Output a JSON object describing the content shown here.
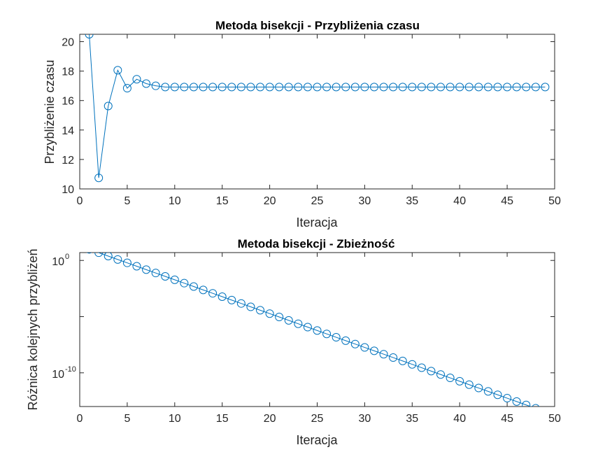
{
  "chart_data": [
    {
      "type": "line",
      "title": "Metoda bisekcji - Przybliżenia czasu",
      "xlabel": "Iteracja",
      "ylabel": "Przybliżenie czasu",
      "xlim": [
        0,
        50
      ],
      "ylim": [
        10,
        20.5
      ],
      "xticks": [
        0,
        5,
        10,
        15,
        20,
        25,
        30,
        35,
        40,
        45,
        50
      ],
      "yticks": [
        10,
        12,
        14,
        16,
        18,
        20
      ],
      "yscale": "linear",
      "grid": false,
      "color": "#0072BD",
      "marker": "circle",
      "x": [
        1,
        2,
        3,
        4,
        5,
        6,
        7,
        8,
        9,
        10,
        11,
        12,
        13,
        14,
        15,
        16,
        17,
        18,
        19,
        20,
        21,
        22,
        23,
        24,
        25,
        26,
        27,
        28,
        29,
        30,
        31,
        32,
        33,
        34,
        35,
        36,
        37,
        38,
        39,
        40,
        41,
        42,
        43,
        44,
        45,
        46,
        47,
        48,
        49
      ],
      "values": [
        20.5,
        10.75,
        15.63,
        18.06,
        16.84,
        17.45,
        17.15,
        17.0,
        16.92,
        16.92,
        16.92,
        16.92,
        16.92,
        16.92,
        16.92,
        16.92,
        16.92,
        16.92,
        16.92,
        16.92,
        16.92,
        16.92,
        16.92,
        16.92,
        16.92,
        16.92,
        16.92,
        16.92,
        16.92,
        16.92,
        16.92,
        16.92,
        16.92,
        16.92,
        16.92,
        16.92,
        16.92,
        16.92,
        16.92,
        16.92,
        16.92,
        16.92,
        16.92,
        16.92,
        16.92,
        16.92,
        16.92,
        16.92,
        16.92
      ]
    },
    {
      "type": "line",
      "title": "Metoda bisekcji - Zbieżność",
      "xlabel": "Iteracja",
      "ylabel": "Różnica kolejnych przybliżeń",
      "xlim": [
        0,
        50
      ],
      "ylim": [
        1e-13,
        5
      ],
      "xticks": [
        0,
        5,
        10,
        15,
        20,
        25,
        30,
        35,
        40,
        45,
        50
      ],
      "yticks_major": [
        1e-10,
        1
      ],
      "yticks_minor": [
        1e-05
      ],
      "ytick_labels": [
        "10",
        "10"
      ],
      "ytick_exponents": [
        "-10",
        "0"
      ],
      "yscale": "log",
      "grid": false,
      "color": "#0072BD",
      "marker": "circle",
      "x": [
        1,
        2,
        3,
        4,
        5,
        6,
        7,
        8,
        9,
        10,
        11,
        12,
        13,
        14,
        15,
        16,
        17,
        18,
        19,
        20,
        21,
        22,
        23,
        24,
        25,
        26,
        27,
        28,
        29,
        30,
        31,
        32,
        33,
        34,
        35,
        36,
        37,
        38,
        39,
        40,
        41,
        42,
        43,
        44,
        45,
        46,
        47,
        48
      ],
      "values": [
        9.75,
        4.875,
        2.4375,
        1.21875,
        0.609375,
        0.3046875,
        0.15234375,
        0.076171875,
        0.0380859375,
        0.01904296875,
        0.009521484375,
        0.0047607421875,
        0.00238037109375,
        0.001190185546875,
        0.0005950927734375,
        0.00029754638671875,
        0.000148773193359375,
        7.43865966796875e-05,
        3.719329833984375e-05,
        1.8596649169921875e-05,
        9.298324584960938e-06,
        4.649162292480469e-06,
        2.3245811462402344e-06,
        1.1622905731201172e-06,
        5.811452865600586e-07,
        2.905726432800293e-07,
        1.4528632164001465e-07,
        7.264316082000732e-08,
        3.632158041000366e-08,
        1.816079020500183e-08,
        9.080395102500916e-09,
        4.540197551250458e-09,
        2.270098775625229e-09,
        1.1350493878126144e-09,
        5.675246939063072e-10,
        2.837623469531536e-10,
        1.418811734765768e-10,
        7.09405867382884e-11,
        3.54702933691442e-11,
        1.77351466845721e-11,
        8.86757334228605e-12,
        4.433786671143025e-12,
        2.2168933355715126e-12,
        1.1084466677857563e-12,
        5.542233338928781e-13,
        2.7711166694643907e-13,
        1.3855583347321954e-13,
        6.927791673660977e-14
      ]
    }
  ]
}
